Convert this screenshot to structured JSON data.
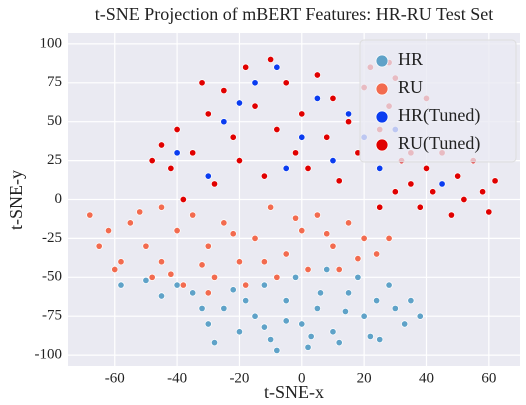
{
  "chart_data": {
    "type": "scatter",
    "title": "t-SNE Projection of mBERT Features: HR-RU Test Set",
    "xlabel": "t-SNE-x",
    "ylabel": "t-SNE-y",
    "xlim": [
      -75,
      70
    ],
    "ylim": [
      -107,
      107
    ],
    "xticks": [
      -60,
      -40,
      -20,
      0,
      20,
      40,
      60
    ],
    "yticks": [
      -100,
      -75,
      -50,
      -25,
      0,
      25,
      50,
      75,
      100
    ],
    "grid": true,
    "legend": "upper right",
    "series": [
      {
        "name": "HR",
        "color": "#5fa2c8",
        "x": [
          -30,
          -25,
          -20,
          -15,
          -10,
          -5,
          0,
          5,
          10,
          15,
          20,
          25,
          30,
          35,
          -35,
          -40,
          -50,
          -58,
          -45,
          -28,
          -8,
          2,
          12,
          22,
          28,
          18,
          8,
          -2,
          -12,
          -22,
          33,
          38,
          -18,
          -5,
          6,
          14,
          -32,
          24,
          -12,
          3
        ],
        "y": [
          -80,
          -70,
          -85,
          -75,
          -90,
          -65,
          -80,
          -70,
          -85,
          -60,
          -75,
          -90,
          -70,
          -65,
          -60,
          -55,
          -52,
          -55,
          -62,
          -92,
          -97,
          -95,
          -92,
          -88,
          -55,
          -50,
          -45,
          -50,
          -55,
          -58,
          -80,
          -75,
          -65,
          -78,
          -60,
          -72,
          -70,
          -65,
          -82,
          -88
        ]
      },
      {
        "name": "RU",
        "color": "#f26b4f",
        "x": [
          -68,
          -62,
          -55,
          -50,
          -45,
          -40,
          -35,
          -30,
          -25,
          -20,
          -15,
          -10,
          -5,
          0,
          5,
          10,
          15,
          20,
          24,
          -58,
          -48,
          -38,
          -28,
          -18,
          -8,
          2,
          12,
          -65,
          -52,
          -42,
          -32,
          -22,
          -12,
          -2,
          8,
          18,
          -60,
          -45,
          -30,
          28
        ],
        "y": [
          -10,
          -20,
          -15,
          -30,
          -40,
          -20,
          -10,
          -30,
          -15,
          -40,
          -25,
          -5,
          -35,
          -20,
          -10,
          -30,
          -15,
          -25,
          -35,
          -40,
          -50,
          -55,
          -50,
          -55,
          -50,
          -45,
          -45,
          -30,
          -8,
          -48,
          -42,
          -22,
          -40,
          -12,
          -22,
          -38,
          -45,
          -5,
          -60,
          -25
        ]
      },
      {
        "name": "HR(Tuned)",
        "color": "#0a3cf0",
        "x": [
          -40,
          -30,
          -25,
          -15,
          -8,
          0,
          5,
          10,
          15,
          20,
          25,
          -20,
          -5,
          30,
          45
        ],
        "y": [
          30,
          15,
          50,
          75,
          85,
          40,
          65,
          25,
          55,
          40,
          20,
          62,
          20,
          45,
          10
        ]
      },
      {
        "name": "RU(Tuned)",
        "color": "#e00000",
        "x": [
          -45,
          -42,
          -40,
          -35,
          -30,
          -28,
          -25,
          -22,
          -20,
          -18,
          -15,
          -12,
          -10,
          -8,
          -5,
          -2,
          0,
          2,
          5,
          8,
          10,
          12,
          15,
          18,
          20,
          22,
          25,
          28,
          30,
          32,
          35,
          38,
          40,
          42,
          45,
          48,
          50,
          52,
          55,
          58,
          60,
          62,
          25,
          30,
          35,
          -38,
          -32,
          28,
          40,
          -48
        ],
        "y": [
          35,
          20,
          45,
          30,
          55,
          10,
          70,
          40,
          25,
          85,
          60,
          15,
          90,
          45,
          75,
          30,
          55,
          20,
          80,
          40,
          65,
          12,
          50,
          30,
          72,
          85,
          45,
          60,
          78,
          25,
          10,
          -5,
          20,
          5,
          30,
          -10,
          15,
          0,
          25,
          5,
          -8,
          12,
          -5,
          5,
          30,
          0,
          75,
          88,
          65,
          25
        ]
      }
    ]
  }
}
